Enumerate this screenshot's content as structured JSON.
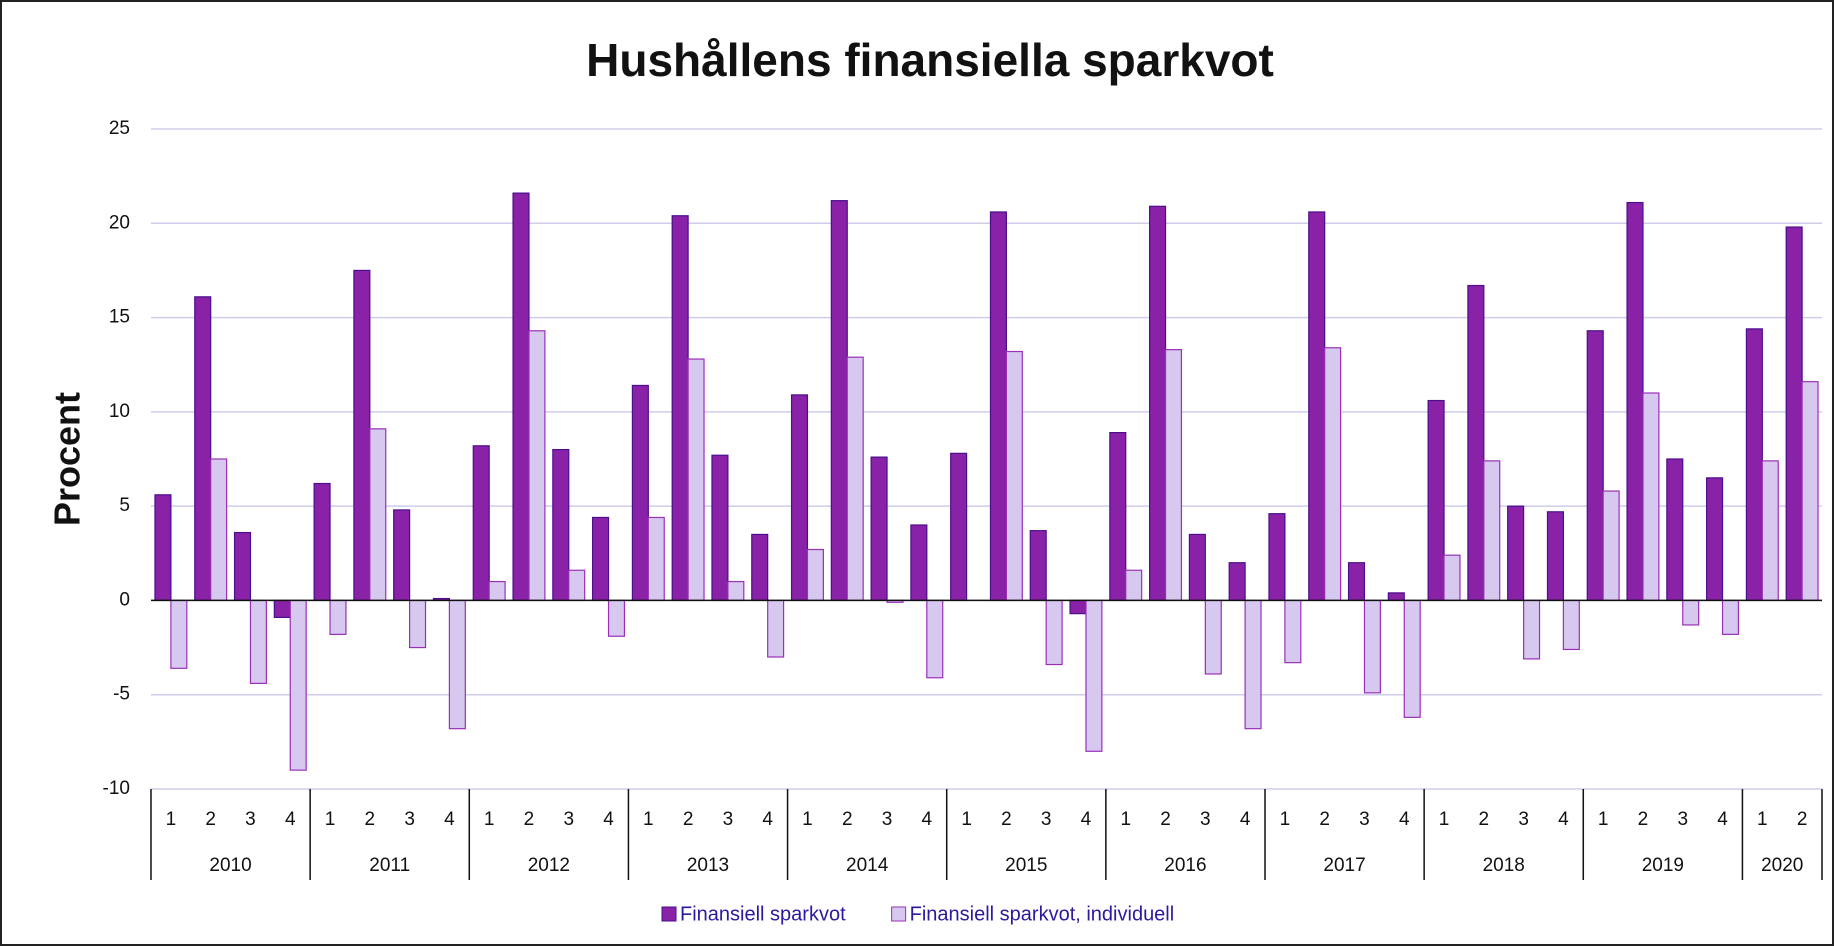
{
  "chart_data": {
    "type": "bar",
    "title": "Hushållens finansiella sparkvot",
    "y_label": "Procent",
    "categories": [
      "1",
      "2",
      "3",
      "4",
      "1",
      "2",
      "3",
      "4",
      "1",
      "2",
      "3",
      "4",
      "1",
      "2",
      "3",
      "4",
      "1",
      "2",
      "3",
      "4",
      "1",
      "2",
      "3",
      "4",
      "1",
      "2",
      "3",
      "4",
      "1",
      "2",
      "3",
      "4",
      "1",
      "2",
      "3",
      "4",
      "1",
      "2",
      "3",
      "4",
      "1",
      "2"
    ],
    "years": [
      "2010",
      "2011",
      "2012",
      "2013",
      "2014",
      "2015",
      "2016",
      "2017",
      "2018",
      "2019",
      "2020"
    ],
    "series": [
      {
        "name": "Finansiell sparkvot",
        "color": "#8a22a8",
        "stroke": "#4a0f8c",
        "values": [
          5.6,
          16.1,
          3.6,
          -0.9,
          6.2,
          17.5,
          4.8,
          0.1,
          8.2,
          21.6,
          8.0,
          4.4,
          11.4,
          20.4,
          7.7,
          3.5,
          10.9,
          21.2,
          7.6,
          4.0,
          7.8,
          20.6,
          3.7,
          -0.7,
          8.9,
          20.9,
          3.5,
          2.0,
          4.6,
          20.6,
          2.0,
          0.4,
          10.6,
          16.7,
          5.0,
          4.7,
          14.3,
          21.1,
          7.5,
          6.5,
          14.4,
          19.8
        ]
      },
      {
        "name": "Finansiell sparkvot, individuell",
        "color": "#d6c8ee",
        "stroke": "#9b30b8",
        "values": [
          -3.6,
          7.5,
          -4.4,
          -9.0,
          -1.8,
          9.1,
          -2.5,
          -6.8,
          1.0,
          14.3,
          1.6,
          -1.9,
          4.4,
          12.8,
          1.0,
          -3.0,
          2.7,
          12.9,
          -0.1,
          -4.1,
          0,
          13.2,
          -3.4,
          -8.0,
          1.6,
          13.3,
          -3.9,
          -6.8,
          -3.3,
          13.4,
          -4.9,
          -6.2,
          2.4,
          7.4,
          -3.1,
          -2.6,
          5.8,
          11.0,
          -1.3,
          -1.8,
          7.4,
          11.6
        ]
      }
    ],
    "ylim": [
      -10,
      25
    ],
    "yticks": [
      -10,
      -5,
      0,
      5,
      10,
      15,
      20,
      25
    ],
    "grid": true
  }
}
